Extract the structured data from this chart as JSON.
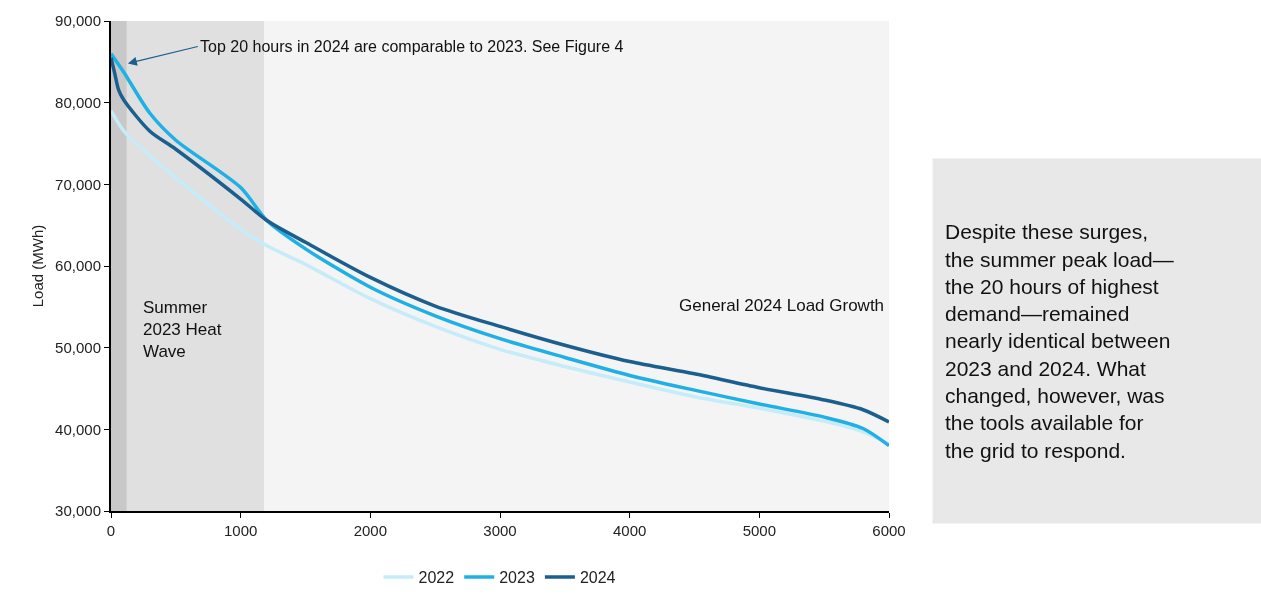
{
  "chart_data": {
    "type": "line",
    "ylabel": "Load (MWh)",
    "xlim": [
      0,
      6000
    ],
    "xticks": [
      0,
      1000,
      2000,
      3000,
      4000,
      5000,
      6000
    ],
    "ylim": [
      30000,
      90000
    ],
    "yticks": [
      {
        "value": 30000,
        "label": "30,000"
      },
      {
        "value": 40000,
        "label": "40,000"
      },
      {
        "value": 50000,
        "label": "50,000"
      },
      {
        "value": 60000,
        "label": "60,000"
      },
      {
        "value": 70000,
        "label": "70,000"
      },
      {
        "value": 80000,
        "label": "80,000"
      },
      {
        "value": 90000,
        "label": "90,000"
      }
    ],
    "grid": false,
    "legend": "bottom",
    "line_style": "solid",
    "marker": "none",
    "series": [
      {
        "name": "2022",
        "color": "#c5ecf8",
        "x": [
          0,
          100,
          300,
          500,
          1000,
          1200,
          1500,
          2000,
          2500,
          3000,
          3500,
          4000,
          4500,
          5000,
          5500,
          5800,
          6000
        ],
        "values": [
          79000,
          76500,
          73500,
          70800,
          64500,
          62500,
          60200,
          56000,
          52600,
          49800,
          47700,
          45800,
          44000,
          42600,
          41000,
          39700,
          38200
        ]
      },
      {
        "name": "2023",
        "color": "#1fb0e6",
        "x": [
          0,
          100,
          300,
          500,
          1000,
          1200,
          1500,
          2000,
          2500,
          3000,
          3500,
          4000,
          4500,
          5000,
          5500,
          5800,
          6000
        ],
        "values": [
          86000,
          83700,
          78700,
          75400,
          69600,
          65600,
          62100,
          57400,
          53900,
          51100,
          48800,
          46600,
          44800,
          43100,
          41500,
          40100,
          38000
        ]
      },
      {
        "name": "2024",
        "color": "#1a5f8e",
        "x": [
          0,
          30,
          60,
          100,
          300,
          500,
          1000,
          1200,
          1500,
          2000,
          2500,
          3000,
          3500,
          4000,
          4500,
          5000,
          5500,
          5800,
          6000
        ],
        "values": [
          85500,
          83500,
          81500,
          80300,
          76500,
          74300,
          68200,
          65600,
          62900,
          58600,
          55100,
          52600,
          50300,
          48300,
          46800,
          45100,
          43600,
          42400,
          40900
        ]
      }
    ],
    "bands": [
      {
        "axis": "x",
        "from": 85,
        "to": 1180,
        "label": "Summer 2023 Heat Wave",
        "color": "#e0e0e0"
      },
      {
        "axis": "x",
        "from": 1180,
        "to": 6000,
        "label": "General 2024 Load Growth",
        "color": "#f4f4f4"
      },
      {
        "axis": "x",
        "from": 0,
        "to": 120,
        "color": "#c8c8c8"
      }
    ],
    "annotations": [
      {
        "text": "Top 20 hours in 2024 are comparable to 2023. See Figure 4",
        "x": 130,
        "y": 84800
      },
      "Despite these surges,\nthe summer peak load—\nthe 20 hours of highest\ndemand—remained\nnearly identical between\n2023 and 2024. What\nchanged, however, was\nthe tools available for\nthe grid to respond."
    ]
  }
}
